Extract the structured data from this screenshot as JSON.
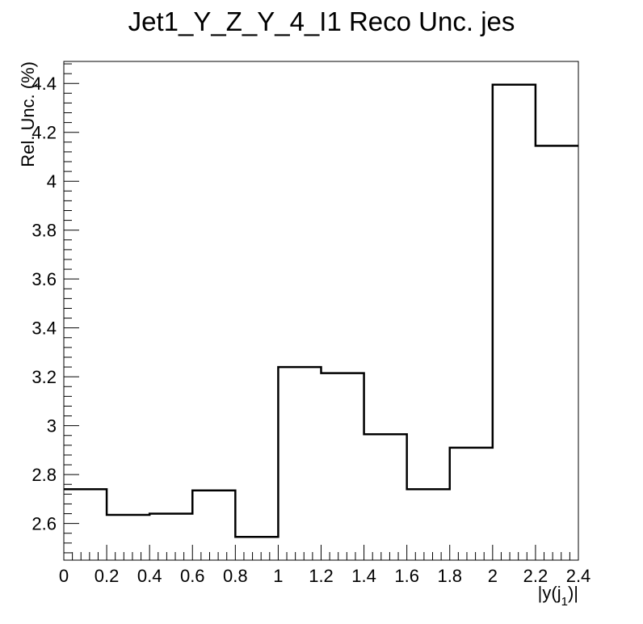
{
  "chart_data": {
    "type": "bar",
    "style": "step-histogram",
    "title": "Jet1_Y_Z_Y_4_I1 Reco Unc. jes",
    "xlabel": "|y(j_1)|",
    "xlabel_main": "|y(j",
    "xlabel_sub": "1",
    "xlabel_close": ")|",
    "ylabel": "Rel. Unc. (%)",
    "bin_edges": [
      0,
      0.2,
      0.4,
      0.6,
      0.8,
      1.0,
      1.2,
      1.4,
      1.6,
      1.8,
      2.0,
      2.2,
      2.4
    ],
    "values": [
      2.74,
      2.635,
      2.64,
      2.735,
      2.545,
      3.24,
      3.215,
      2.965,
      2.74,
      2.91,
      4.395,
      4.145
    ],
    "xlim": [
      0,
      2.4
    ],
    "ylim": [
      2.45,
      4.49
    ],
    "x_ticks": [
      0,
      0.2,
      0.4,
      0.6,
      0.8,
      1,
      1.2,
      1.4,
      1.6,
      1.8,
      2,
      2.2,
      2.4
    ],
    "x_tick_labels": [
      "0",
      "0.2",
      "0.4",
      "0.6",
      "0.8",
      "1",
      "1.2",
      "1.4",
      "1.6",
      "1.8",
      "2",
      "2.2",
      "2.4"
    ],
    "y_ticks": [
      2.6,
      2.8,
      3.0,
      3.2,
      3.4,
      3.6,
      3.8,
      4.0,
      4.2,
      4.4
    ],
    "y_tick_labels": [
      "2.6",
      "2.8",
      "3",
      "3.2",
      "3.4",
      "3.6",
      "3.8",
      "4",
      "4.2",
      "4.4"
    ],
    "grid": false,
    "line_color": "#000000"
  }
}
